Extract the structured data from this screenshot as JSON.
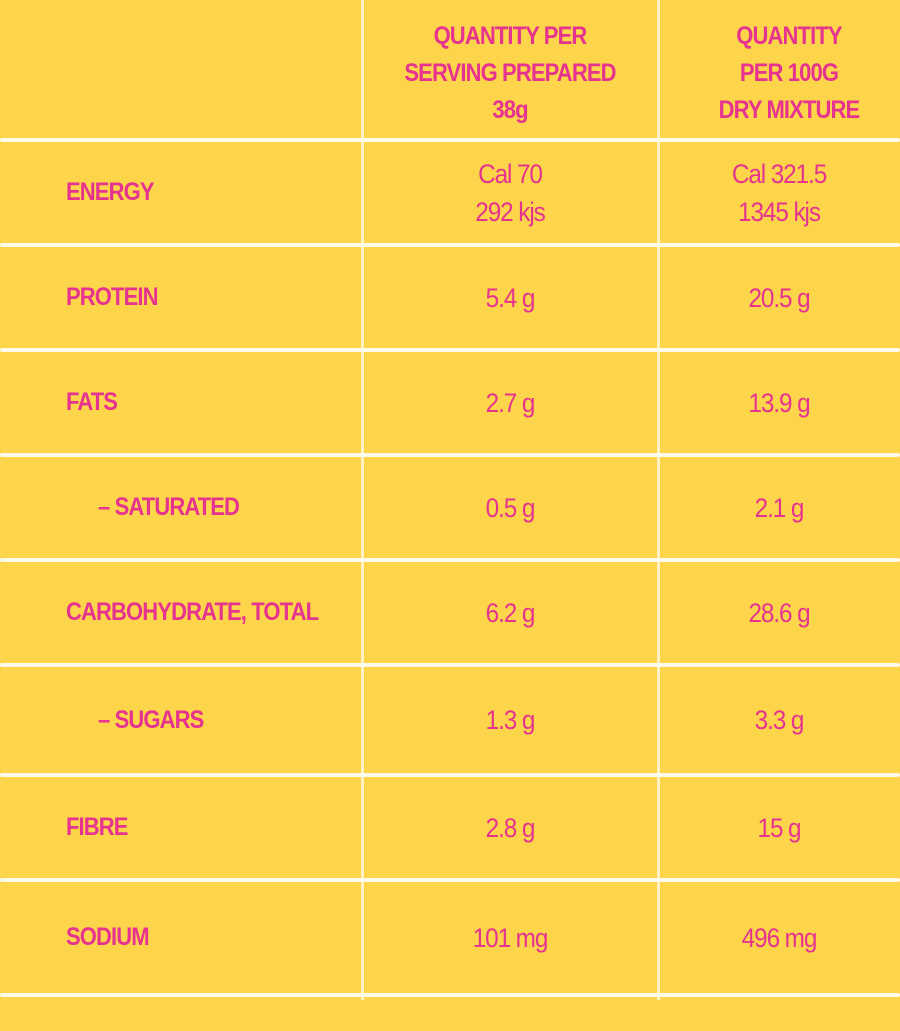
{
  "colors": {
    "background": "#FDD54B",
    "text": "#E6338F",
    "lines": "#FFFBEA"
  },
  "header": {
    "col1": [
      "QUANTITY PER",
      "SERVING PREPARED",
      "38g"
    ],
    "col2": [
      "QUANTITY",
      "PER 100G",
      "DRY MIXTURE"
    ]
  },
  "rows": [
    {
      "label": "ENERGY",
      "v1": [
        "Cal 70",
        "292 kjs"
      ],
      "v2": [
        "Cal 321.5",
        "1345 kjs"
      ]
    },
    {
      "label": "PROTEIN",
      "v1": [
        "5.4 g"
      ],
      "v2": [
        "20.5 g"
      ]
    },
    {
      "label": "FATS",
      "v1": [
        "2.7 g"
      ],
      "v2": [
        "13.9 g"
      ]
    },
    {
      "label": "– SATURATED",
      "v1": [
        "0.5 g"
      ],
      "v2": [
        "2.1 g"
      ]
    },
    {
      "label": "CARBOHYDRATE, TOTAL",
      "v1": [
        "6.2 g"
      ],
      "v2": [
        "28.6 g"
      ]
    },
    {
      "label": "– SUGARS",
      "v1": [
        "1.3 g"
      ],
      "v2": [
        "3.3 g"
      ]
    },
    {
      "label": "FIBRE",
      "v1": [
        "2.8 g"
      ],
      "v2": [
        "15 g"
      ]
    },
    {
      "label": "SODIUM",
      "v1": [
        "101 mg"
      ],
      "v2": [
        "496 mg"
      ]
    }
  ]
}
